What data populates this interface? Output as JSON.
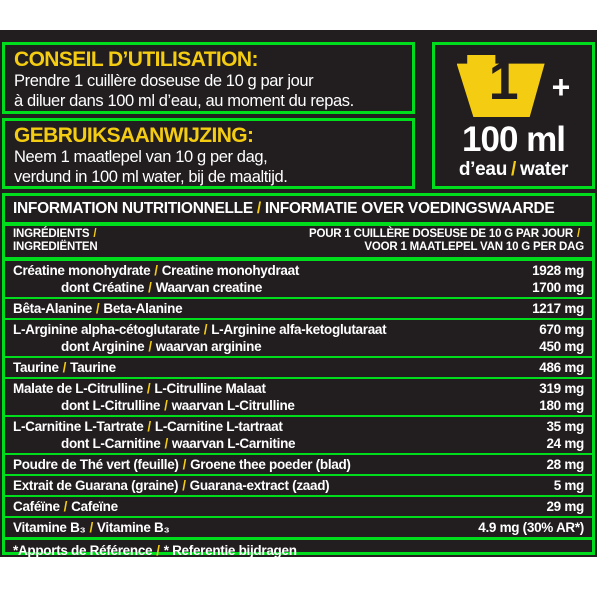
{
  "colors": {
    "green": "#00dd1c",
    "yellow": "#f4cc12",
    "black": "#221e1f",
    "white": "#ffffff"
  },
  "slash": "/",
  "usage_fr": {
    "title": "CONSEIL D’UTILISATION:",
    "line1": "Prendre 1 cuillère doseuse de 10 g par jour",
    "line2": "à diluer dans 100 ml d’eau, au moment du repas."
  },
  "usage_nl": {
    "title": "GEBRUIKSAANWIJZING:",
    "line1": "Neem 1 maatlepel van 10 g per dag,",
    "line2": "verdund in 100 ml water, bij de maaltijd."
  },
  "dose": {
    "scoop_number": "1",
    "plus": "+",
    "volume": "100 ml",
    "water_fr": "d’eau",
    "water_nl": "water"
  },
  "table": {
    "title_fr": "INFORMATION NUTRITIONNELLE",
    "title_nl": "INFORMATIE OVER VOEDINGSWAARDE",
    "col_left_fr": "INGRÉDIENTS",
    "col_left_nl": "INGREDIËNTEN",
    "col_right_fr": "POUR 1 CUILLÈRE DOSEUSE DE 10 G PAR JOUR",
    "col_right_nl": "VOOR 1 MAATLEPEL VAN 10 G PER DAG",
    "rows": [
      {
        "fr": "Créatine monohydrate",
        "nl": "Creatine monohydraat",
        "value": "1928 mg",
        "sub_fr": "dont Créatine",
        "sub_nl": "Waarvan creatine",
        "sub_value": "1700 mg"
      },
      {
        "fr": "Bêta-Alanine",
        "nl": "Beta-Alanine",
        "value": "1217 mg"
      },
      {
        "fr": "L-Arginine alpha-cétoglutarate",
        "nl": "L-Arginine alfa-ketoglutaraat",
        "value": "670 mg",
        "sub_fr": "dont Arginine",
        "sub_nl": "waarvan arginine",
        "sub_value": "450 mg"
      },
      {
        "fr": "Taurine",
        "nl": "Taurine",
        "value": "486 mg"
      },
      {
        "fr": "Malate de L-Citrulline",
        "nl": "L-Citrulline Malaat",
        "value": "319 mg",
        "sub_fr": "dont L-Citrulline",
        "sub_nl": "waarvan L-Citrulline",
        "sub_value": "180 mg"
      },
      {
        "fr": "L-Carnitine L-Tartrate",
        "nl": "L-Carnitine L-tartraat",
        "value": "35 mg",
        "sub_fr": "dont L-Carnitine",
        "sub_nl": "waarvan L-Carnitine",
        "sub_value": "24 mg"
      },
      {
        "fr": "Poudre de Thé vert (feuille)",
        "nl": "Groene thee poeder (blad)",
        "value": "28 mg"
      },
      {
        "fr": "Extrait de Guarana (graine)",
        "nl": "Guarana-extract (zaad)",
        "value": "5 mg"
      },
      {
        "fr": "Caféïne",
        "nl": "Cafeïne",
        "value": "29 mg"
      },
      {
        "fr": "Vitamine B₃",
        "nl": "Vitamine B₃",
        "value": "4.9 mg (30% AR*)"
      }
    ],
    "footnote_fr": "*Apports de Référence",
    "footnote_nl": "* Referentie bijdragen"
  }
}
